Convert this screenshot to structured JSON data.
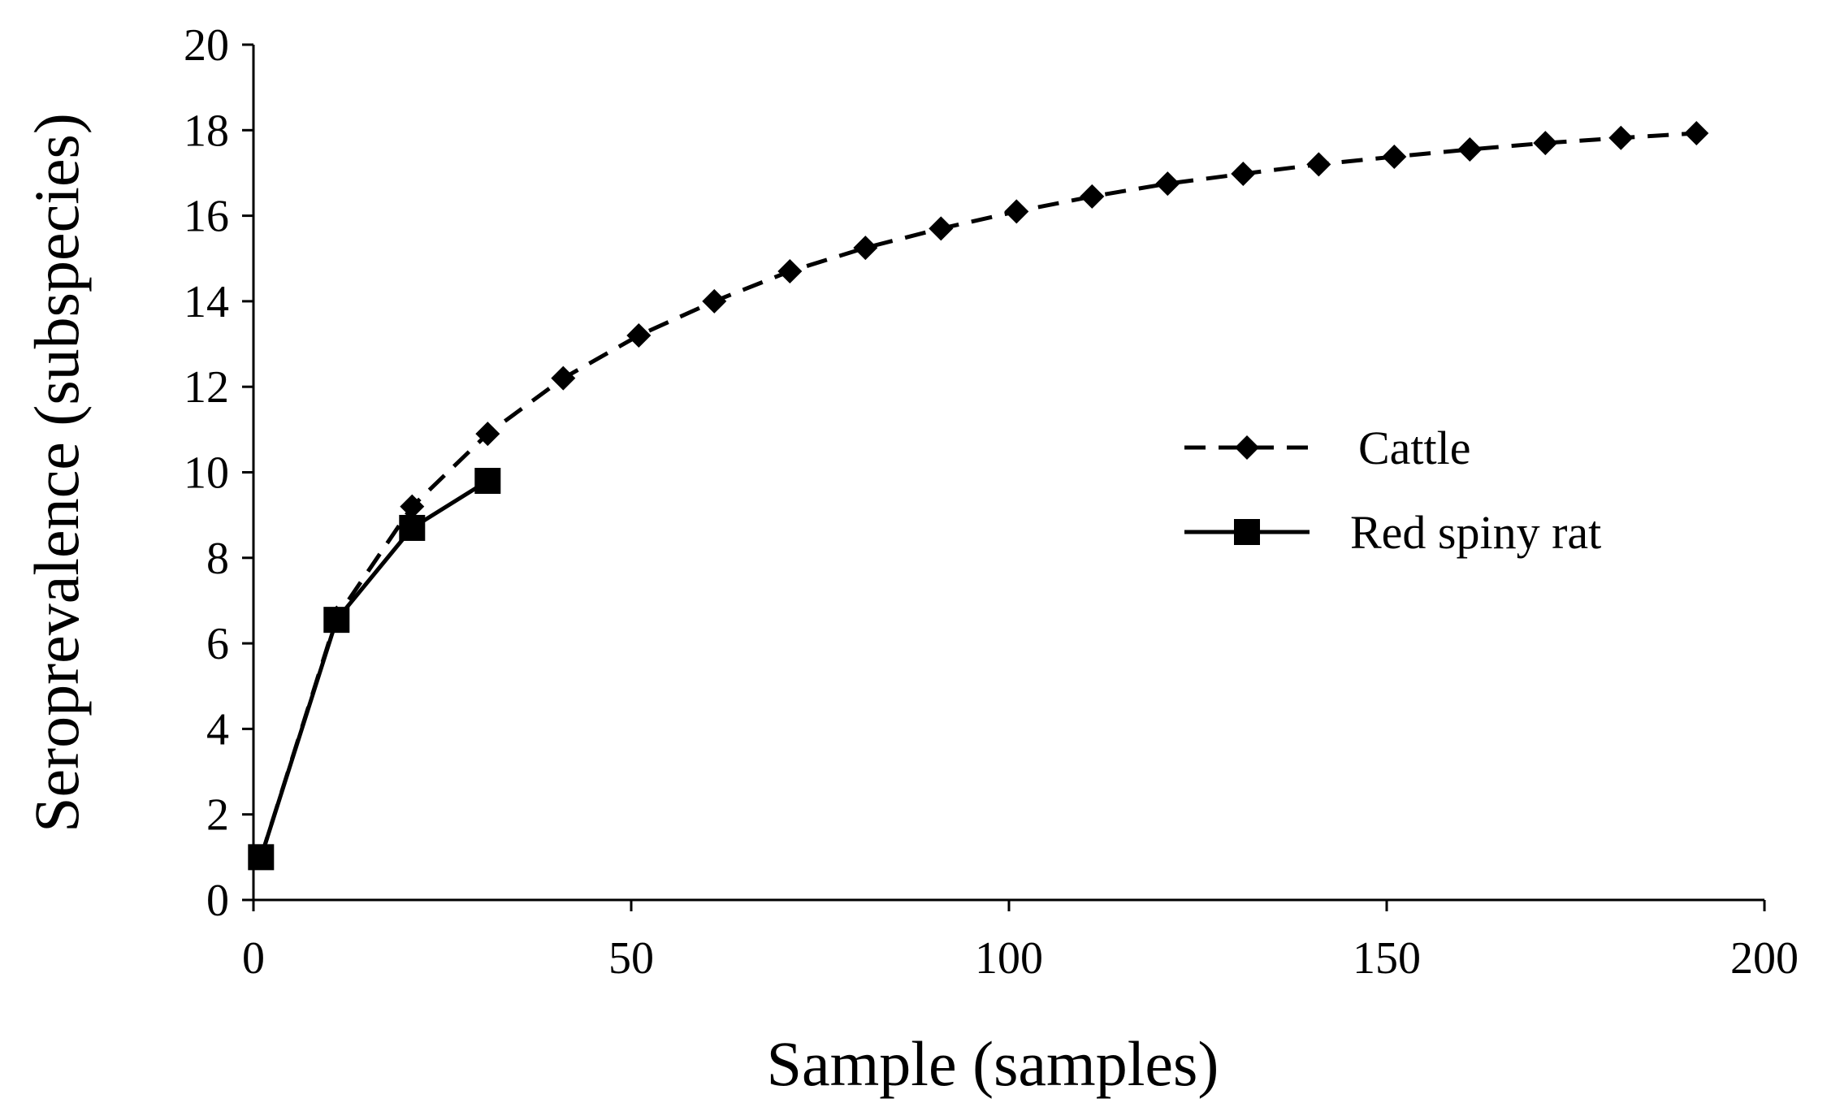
{
  "chart_data": {
    "type": "line",
    "xlabel": "Sample (samples)",
    "ylabel": "Seroprevalence (subspecies)",
    "xlim": [
      0,
      200
    ],
    "ylim": [
      0,
      20
    ],
    "xticks": [
      "0",
      "50",
      "100",
      "150",
      "200"
    ],
    "yticks": [
      "0",
      "2",
      "4",
      "6",
      "8",
      "10",
      "12",
      "14",
      "16",
      "18",
      "20"
    ],
    "grid": false,
    "legend_position": "right",
    "series": [
      {
        "name": "Cattle",
        "style": "dashed",
        "marker": "diamond",
        "color": "#000000",
        "points": [
          {
            "x": 1,
            "y": 1.0
          },
          {
            "x": 11,
            "y": 6.6
          },
          {
            "x": 21,
            "y": 9.2
          },
          {
            "x": 31,
            "y": 10.9
          },
          {
            "x": 41,
            "y": 12.2
          },
          {
            "x": 51,
            "y": 13.2
          },
          {
            "x": 61,
            "y": 14.0
          },
          {
            "x": 71,
            "y": 14.7
          },
          {
            "x": 81,
            "y": 15.25
          },
          {
            "x": 91,
            "y": 15.7
          },
          {
            "x": 101,
            "y": 16.1
          },
          {
            "x": 111,
            "y": 16.45
          },
          {
            "x": 121,
            "y": 16.75
          },
          {
            "x": 131,
            "y": 16.98
          },
          {
            "x": 141,
            "y": 17.2
          },
          {
            "x": 151,
            "y": 17.38
          },
          {
            "x": 161,
            "y": 17.55
          },
          {
            "x": 171,
            "y": 17.7
          },
          {
            "x": 181,
            "y": 17.82
          },
          {
            "x": 191,
            "y": 17.93
          }
        ]
      },
      {
        "name": "Red spiny rat",
        "style": "solid",
        "marker": "square",
        "color": "#000000",
        "points": [
          {
            "x": 1,
            "y": 1.0
          },
          {
            "x": 11,
            "y": 6.55
          },
          {
            "x": 21,
            "y": 8.7
          },
          {
            "x": 31,
            "y": 9.8
          }
        ]
      }
    ]
  }
}
